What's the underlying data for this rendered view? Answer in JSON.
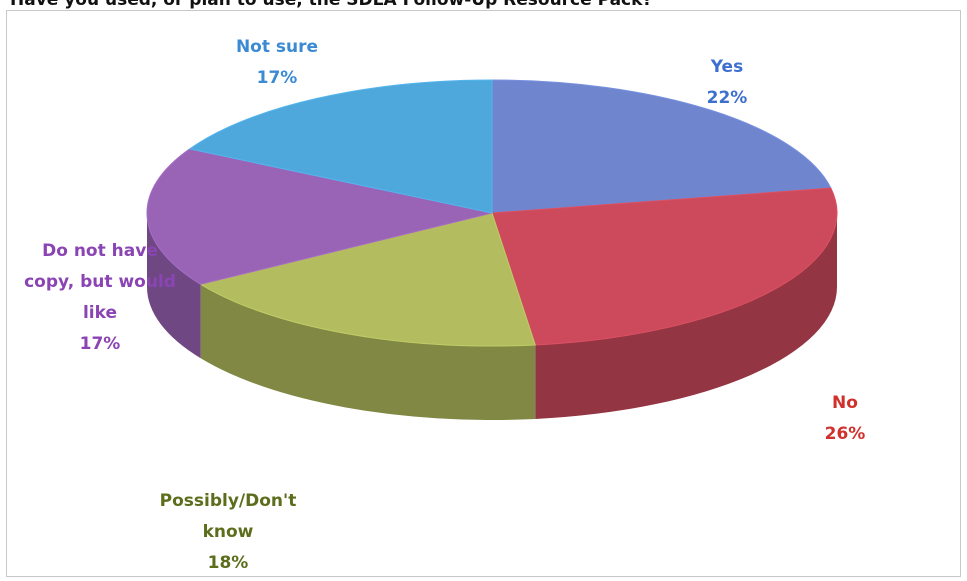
{
  "title": "Have you used, or plan to use, the SDLA Follow-Up Resource Pack?",
  "chart_data": {
    "type": "pie",
    "title": "Have you used, or plan to use, the SDLA Follow-Up Resource Pack?",
    "slices": [
      {
        "label": "Yes",
        "value": 22,
        "pct_label": "22%",
        "color": "#6f86cf"
      },
      {
        "label": "No",
        "value": 26,
        "pct_label": "26%",
        "color": "#cc4a5c"
      },
      {
        "label": "Possibly/Don't know",
        "label_lines": [
          "Possibly/Don't",
          "know"
        ],
        "value": 18,
        "pct_label": "18%",
        "color": "#b3bd5f"
      },
      {
        "label": "Do not have copy, but would like",
        "label_lines": [
          "Do not have",
          "copy, but would",
          "like"
        ],
        "value": 17,
        "pct_label": "17%",
        "color": "#9a64b6"
      },
      {
        "label": "Not sure",
        "value": 17,
        "pct_label": "17%",
        "color": "#4ea8dc"
      }
    ],
    "label_colors": {
      "Yes": "#3d6fcf",
      "No": "#d0312c",
      "Possibly/Don't know": "#5c6e1c",
      "Do not have copy, but would like": "#8a44b3",
      "Not sure": "#3b8ad4"
    }
  }
}
